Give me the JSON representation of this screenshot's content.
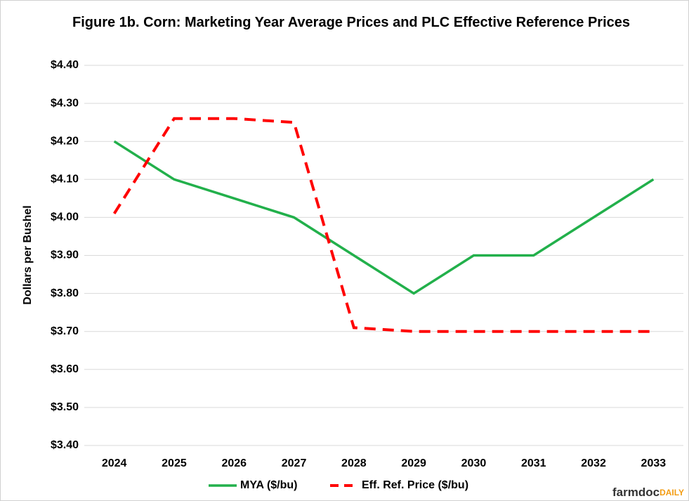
{
  "chart_data": {
    "type": "line",
    "title": "Figure 1b. Corn: Marketing Year Average Prices and PLC Effective Reference Prices",
    "y_label": "Dollars per Bushel",
    "categories": [
      "2024",
      "2025",
      "2026",
      "2027",
      "2028",
      "2029",
      "2030",
      "2031",
      "2032",
      "2033"
    ],
    "series": [
      {
        "name": "MYA ($/bu)",
        "color": "#22b04b",
        "dash": false,
        "values": [
          4.2,
          4.1,
          4.05,
          4.0,
          3.9,
          3.8,
          3.9,
          3.9,
          4.0,
          4.1
        ]
      },
      {
        "name": "Eff. Ref. Price ($/bu)",
        "color": "#ff0000",
        "dash": true,
        "values": [
          4.01,
          4.26,
          4.26,
          4.25,
          3.71,
          3.7,
          3.7,
          3.7,
          3.7,
          3.7
        ]
      }
    ],
    "ylim": [
      3.4,
      4.4
    ],
    "yticks": [
      {
        "value": 3.4,
        "label": "$3.40"
      },
      {
        "value": 3.5,
        "label": "$3.50"
      },
      {
        "value": 3.6,
        "label": "$3.60"
      },
      {
        "value": 3.7,
        "label": "$3.70"
      },
      {
        "value": 3.8,
        "label": "$3.80"
      },
      {
        "value": 3.9,
        "label": "$3.90"
      },
      {
        "value": 4.0,
        "label": "$4.00"
      },
      {
        "value": 4.1,
        "label": "$4.10"
      },
      {
        "value": 4.2,
        "label": "$4.20"
      },
      {
        "value": 4.3,
        "label": "$4.30"
      },
      {
        "value": 4.4,
        "label": "$4.40"
      }
    ],
    "grid": true,
    "legend": "bottom",
    "brand": [
      "farmdoc",
      "DAILY"
    ]
  }
}
